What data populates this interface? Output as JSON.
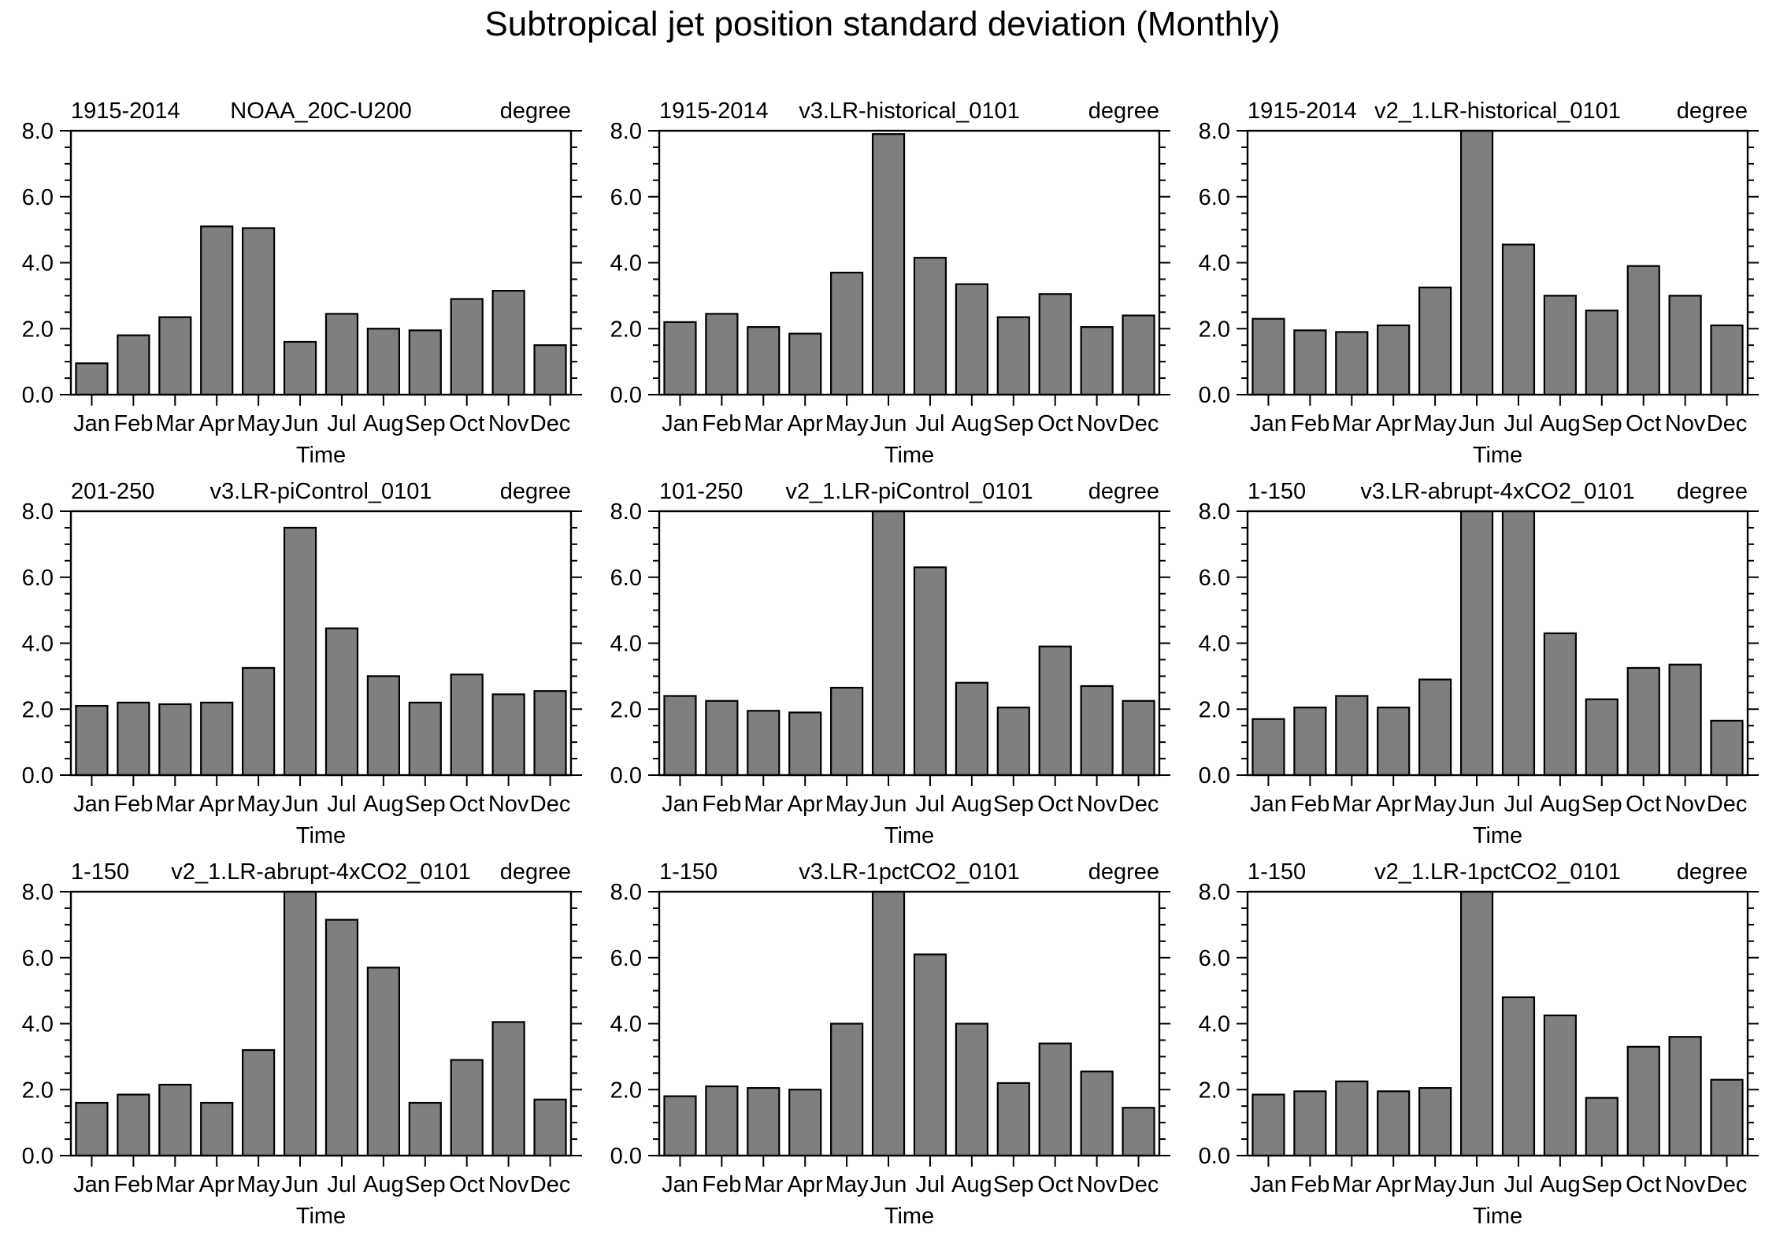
{
  "page_title": "Subtropical jet position standard deviation (Monthly)",
  "colors": {
    "bar_fill": "#7f7f7f",
    "bar_edge": "#000000",
    "axis": "#000000",
    "background": "#ffffff"
  },
  "chart_data": {
    "type": "bar",
    "layout": "3x3 grid of monthly bar charts",
    "title": "Subtropical jet position standard deviation (Monthly)",
    "categories": [
      "Jan",
      "Feb",
      "Mar",
      "Apr",
      "May",
      "Jun",
      "Jul",
      "Aug",
      "Sep",
      "Oct",
      "Nov",
      "Dec"
    ],
    "xlabel": "Time",
    "unit_label": "degree",
    "ylim": [
      0.0,
      8.0
    ],
    "yticks": [
      0.0,
      2.0,
      4.0,
      6.0,
      8.0
    ],
    "ytick_labels": [
      "0.0",
      "2.0",
      "4.0",
      "6.0",
      "8.0"
    ],
    "minor_tick_step": 0.5,
    "grid": "off",
    "panels": [
      {
        "period": "1915-2014",
        "title": "NOAA_20C-U200",
        "values": [
          0.95,
          1.8,
          2.35,
          5.1,
          5.05,
          1.6,
          2.45,
          2.0,
          1.95,
          2.9,
          3.15,
          1.5
        ],
        "clipped_at_ymax": []
      },
      {
        "period": "1915-2014",
        "title": "v3.LR-historical_0101",
        "values": [
          2.2,
          2.45,
          2.05,
          1.85,
          3.7,
          7.9,
          4.15,
          3.35,
          2.35,
          3.05,
          2.05,
          2.4
        ],
        "clipped_at_ymax": []
      },
      {
        "period": "1915-2014",
        "title": "v2_1.LR-historical_0101",
        "values": [
          2.3,
          1.95,
          1.9,
          2.1,
          3.25,
          8.0,
          4.55,
          3.0,
          2.55,
          3.9,
          3.0,
          2.1
        ],
        "clipped_at_ymax": [
          "Jun"
        ]
      },
      {
        "period": "201-250",
        "title": "v3.LR-piControl_0101",
        "values": [
          2.1,
          2.2,
          2.15,
          2.2,
          3.25,
          7.5,
          4.45,
          3.0,
          2.2,
          3.05,
          2.45,
          2.55
        ],
        "clipped_at_ymax": []
      },
      {
        "period": "101-250",
        "title": "v2_1.LR-piControl_0101",
        "values": [
          2.4,
          2.25,
          1.95,
          1.9,
          2.65,
          8.0,
          6.3,
          2.8,
          2.05,
          3.9,
          2.7,
          2.25
        ],
        "clipped_at_ymax": [
          "Jun"
        ]
      },
      {
        "period": "1-150",
        "title": "v3.LR-abrupt-4xCO2_0101",
        "values": [
          1.7,
          2.05,
          2.4,
          2.05,
          2.9,
          8.0,
          8.0,
          4.3,
          2.3,
          3.25,
          3.35,
          1.65
        ],
        "clipped_at_ymax": [
          "Jun",
          "Jul"
        ]
      },
      {
        "period": "1-150",
        "title": "v2_1.LR-abrupt-4xCO2_0101",
        "values": [
          1.6,
          1.85,
          2.15,
          1.6,
          3.2,
          8.0,
          7.15,
          5.7,
          1.6,
          2.9,
          4.05,
          1.7
        ],
        "clipped_at_ymax": [
          "Jun"
        ]
      },
      {
        "period": "1-150",
        "title": "v3.LR-1pctCO2_0101",
        "values": [
          1.8,
          2.1,
          2.05,
          2.0,
          4.0,
          8.0,
          6.1,
          4.0,
          2.2,
          3.4,
          2.55,
          1.45
        ],
        "clipped_at_ymax": [
          "Jun"
        ]
      },
      {
        "period": "1-150",
        "title": "v2_1.LR-1pctCO2_0101",
        "values": [
          1.85,
          1.95,
          2.25,
          1.95,
          2.05,
          8.0,
          4.8,
          4.25,
          1.75,
          3.3,
          3.6,
          2.3
        ],
        "clipped_at_ymax": [
          "Jun"
        ]
      }
    ]
  }
}
